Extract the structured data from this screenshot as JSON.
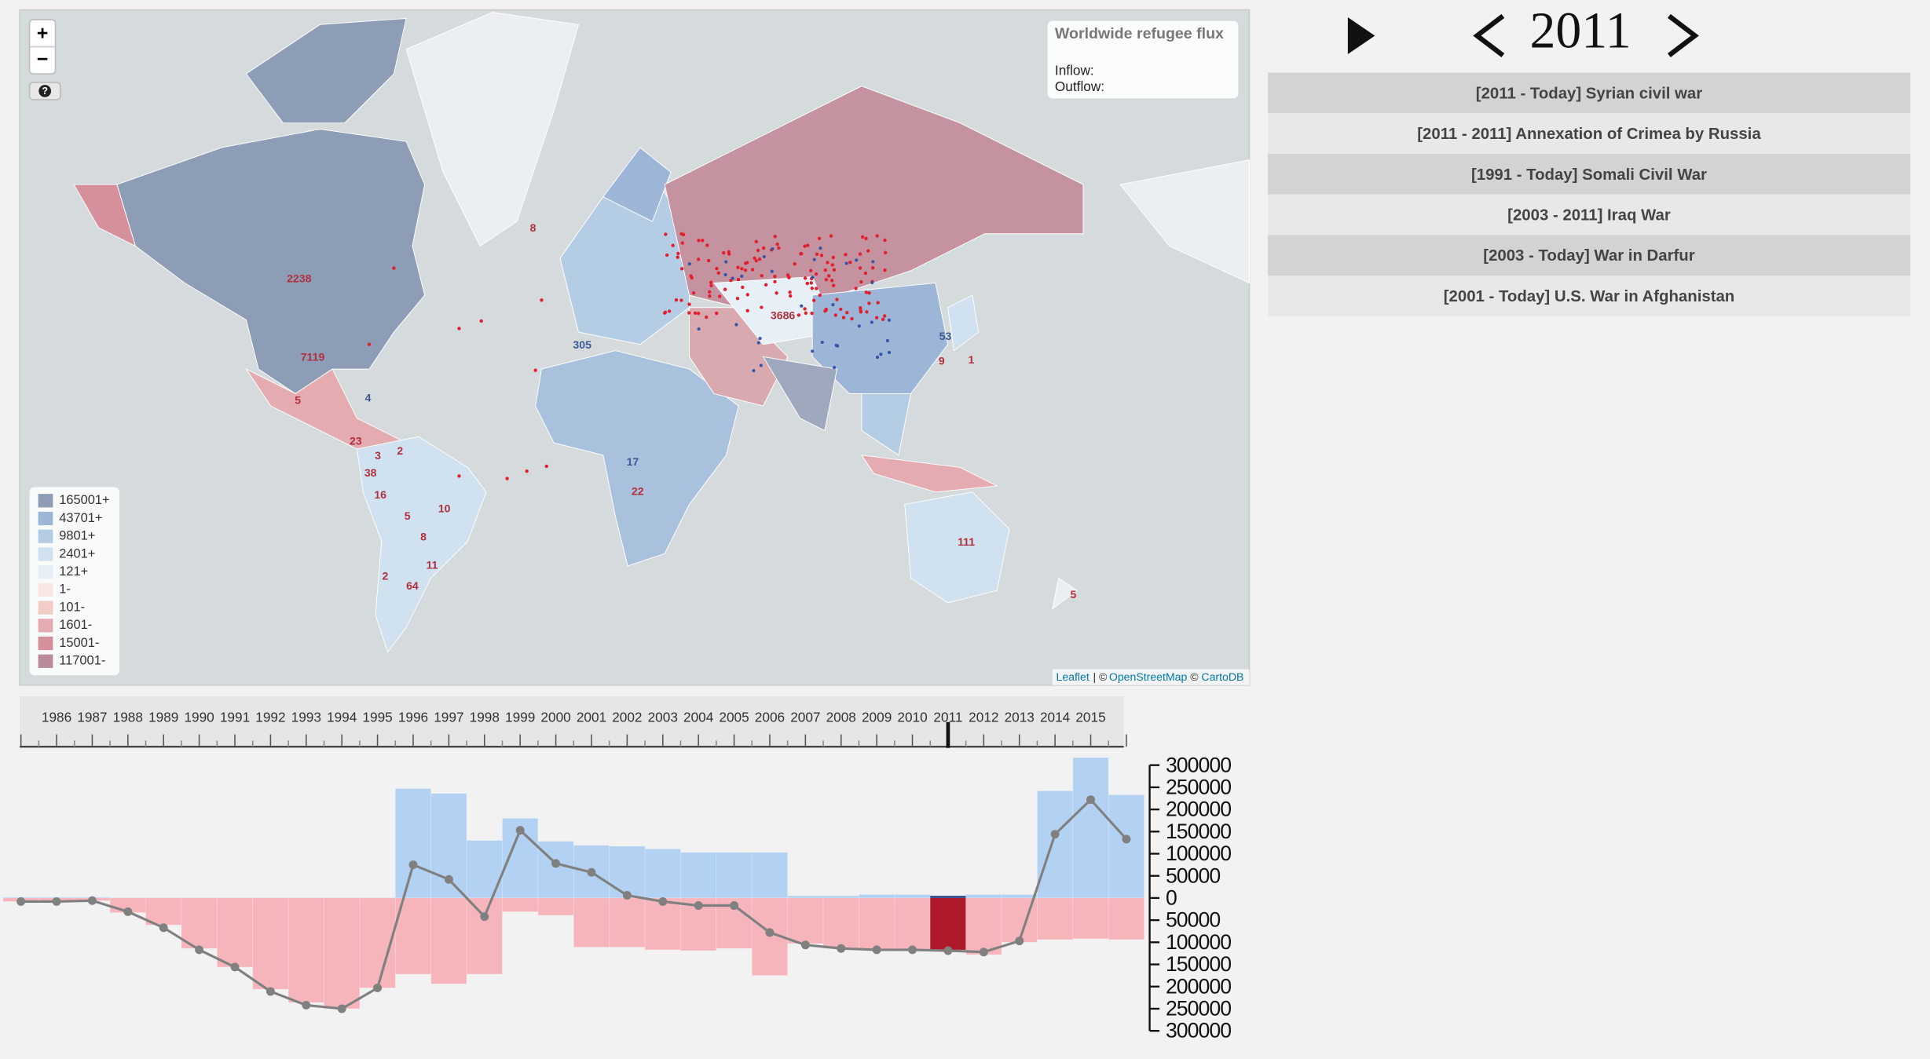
{
  "map": {
    "zoom_in": "+",
    "zoom_out": "−",
    "help": "?",
    "info": {
      "title": "Worldwide refugee flux",
      "inflow": "Inflow:",
      "outflow": "Outflow:"
    },
    "legend": [
      {
        "label": "165001+",
        "color": "#8e9db6"
      },
      {
        "label": "43701+",
        "color": "#9db6d7"
      },
      {
        "label": "9801+",
        "color": "#b4cde4"
      },
      {
        "label": "2401+",
        "color": "#d0e1ef"
      },
      {
        "label": "121+",
        "color": "#e7eff7"
      },
      {
        "label": "1-",
        "color": "#f8e6e2"
      },
      {
        "label": "101-",
        "color": "#f3ccc5"
      },
      {
        "label": "1601-",
        "color": "#e4abb1"
      },
      {
        "label": "15001-",
        "color": "#d6909b"
      },
      {
        "label": "117001-",
        "color": "#b98a97"
      }
    ],
    "labels": [
      "2238",
      "7119",
      "5",
      "4",
      "23",
      "3",
      "2",
      "38",
      "16",
      "10",
      "5",
      "8",
      "11",
      "2",
      "64",
      "111",
      "5",
      "53",
      "9",
      "1",
      "22",
      "17",
      "3686",
      "305",
      "8"
    ],
    "attribution": {
      "leaflet": "Leaflet",
      "separator": "| ©",
      "osm": "OpenStreetMap",
      "carto_prefix": "©",
      "carto": "CartoDB"
    }
  },
  "controls": {
    "year": "2011",
    "conflicts": [
      "[2011 - Today] Syrian civil war",
      "[2011 - 2011] Annexation of Crimea by Russia",
      "[1991 - Today] Somali Civil War",
      "[2003 - 2011] Iraq War",
      "[2003 - Today] War in Darfur",
      "[2001 - Today] U.S. War in Afghanistan"
    ]
  },
  "chart_data": {
    "type": "bar",
    "categories": [
      null,
      "1986",
      "1987",
      "1988",
      "1989",
      "1990",
      "1991",
      "1992",
      "1993",
      "1994",
      "1995",
      "1996",
      "1997",
      "1998",
      "1999",
      "2000",
      "2001",
      "2002",
      "2003",
      "2004",
      "2005",
      "2006",
      "2007",
      "2008",
      "2009",
      "2010",
      "2011",
      "2012",
      "2013",
      "2014",
      "2015",
      null
    ],
    "series": [
      {
        "color": "#b3d1f2",
        "highlight": "#2d4f8e",
        "values": [
          2000,
          2000,
          2000,
          1000,
          1000,
          1000,
          1000,
          1000,
          1000,
          1000,
          1000,
          247000,
          236000,
          130000,
          180000,
          128000,
          119000,
          117000,
          111000,
          103000,
          103000,
          103000,
          5000,
          5000,
          8000,
          8000,
          5000,
          8000,
          8000,
          242000,
          317000,
          233000
        ]
      },
      {
        "color": "#f5b5bb",
        "highlight": "#b0182b",
        "values": [
          -8000,
          -8000,
          -6000,
          -33000,
          -61000,
          -114000,
          -156000,
          -206000,
          -236000,
          -250000,
          -203000,
          -172000,
          -194000,
          -172000,
          -31000,
          -39000,
          -111000,
          -111000,
          -117000,
          -119000,
          -114000,
          -175000,
          -103000,
          -114000,
          -117000,
          -117000,
          -117000,
          -128000,
          -100000,
          -94000,
          -92000,
          -94000
        ]
      },
      {
        "type": "line",
        "color": "#808080",
        "values": [
          -8000,
          -8000,
          -6000,
          -31000,
          -67000,
          -117000,
          -156000,
          -211000,
          -242000,
          -250000,
          -203000,
          75000,
          42000,
          -42000,
          153000,
          78000,
          58000,
          6000,
          -8000,
          -17000,
          -17000,
          -78000,
          -106000,
          -114000,
          -117000,
          -117000,
          -119000,
          -122000,
          -97000,
          144000,
          222000,
          133000
        ]
      }
    ],
    "ylim": [
      -300000,
      300000
    ],
    "yticks": [
      300000,
      250000,
      200000,
      150000,
      100000,
      50000,
      0,
      {
        "value": -50000,
        "label": "50000"
      },
      {
        "value": -100000,
        "label": "100000"
      },
      {
        "value": -150000,
        "label": "150000"
      },
      {
        "value": -200000,
        "label": "200000"
      },
      {
        "value": -250000,
        "label": "250000"
      },
      {
        "value": -300000,
        "label": "300000"
      }
    ]
  }
}
